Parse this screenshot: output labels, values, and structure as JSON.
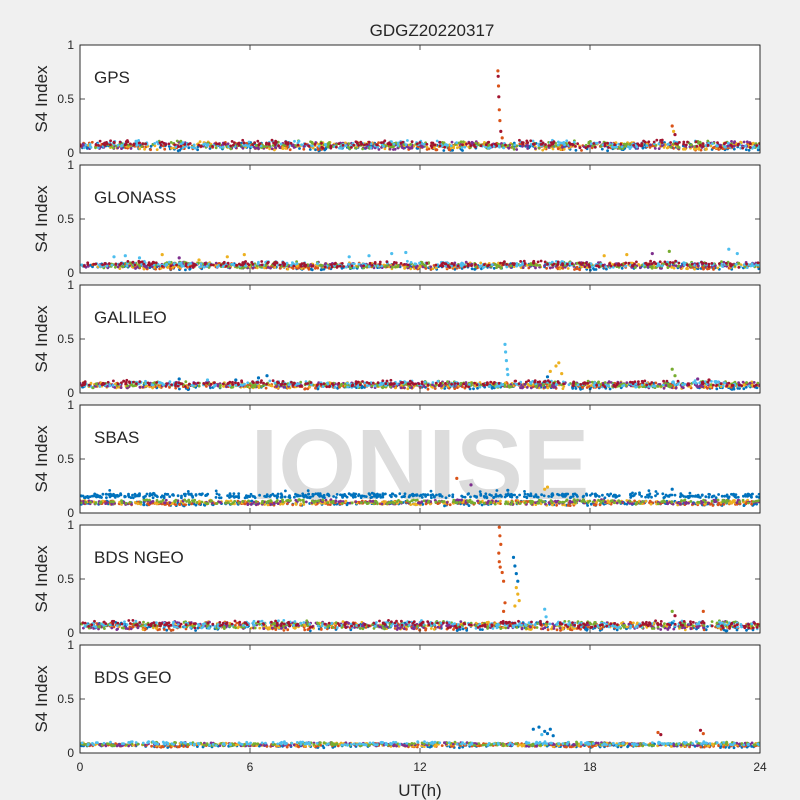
{
  "chart_data": {
    "type": "scatter",
    "title": "GDGZ20220317",
    "xlabel": "UT(h)",
    "ylabel": "S4 Index",
    "xlim": [
      0,
      24
    ],
    "ylim": [
      0,
      1
    ],
    "xticks": [
      "0",
      "6",
      "12",
      "18",
      "24"
    ],
    "yticks": [
      "0",
      "0.5",
      "1"
    ],
    "watermark": "IONISE",
    "grid": false,
    "palette": [
      "#0072BD",
      "#D95319",
      "#EDB120",
      "#7E2F8E",
      "#77AC30",
      "#4DBEEE",
      "#A2142F"
    ],
    "panels": [
      {
        "name": "GPS",
        "baseline": 0.07,
        "spread": 0.025,
        "segments": [
          [
            0,
            24
          ],
          [
            0,
            24
          ],
          [
            0,
            24
          ],
          [
            0,
            24
          ],
          [
            0,
            24
          ],
          [
            0,
            24
          ],
          [
            0,
            24
          ]
        ],
        "points": [
          {
            "x": 14.75,
            "y": 0.76,
            "c": 1
          },
          {
            "x": 14.76,
            "y": 0.71,
            "c": 6
          },
          {
            "x": 14.77,
            "y": 0.62,
            "c": 1
          },
          {
            "x": 14.78,
            "y": 0.52,
            "c": 6
          },
          {
            "x": 14.8,
            "y": 0.4,
            "c": 1
          },
          {
            "x": 14.82,
            "y": 0.3,
            "c": 1
          },
          {
            "x": 14.85,
            "y": 0.2,
            "c": 6
          },
          {
            "x": 14.9,
            "y": 0.14,
            "c": 1
          },
          {
            "x": 20.9,
            "y": 0.25,
            "c": 1
          },
          {
            "x": 20.95,
            "y": 0.2,
            "c": 2
          },
          {
            "x": 21.0,
            "y": 0.17,
            "c": 6
          }
        ]
      },
      {
        "name": "GLONASS",
        "baseline": 0.07,
        "spread": 0.02,
        "segments": [
          [
            0,
            24
          ],
          [
            0,
            24
          ],
          [
            0,
            24
          ],
          [
            0,
            24
          ],
          [
            0,
            24
          ],
          [
            0,
            24
          ],
          [
            0,
            24
          ]
        ],
        "points": [
          {
            "x": 1.2,
            "y": 0.15,
            "c": 5
          },
          {
            "x": 1.6,
            "y": 0.16,
            "c": 5
          },
          {
            "x": 2.1,
            "y": 0.14,
            "c": 5
          },
          {
            "x": 2.9,
            "y": 0.17,
            "c": 2
          },
          {
            "x": 3.5,
            "y": 0.14,
            "c": 3
          },
          {
            "x": 4.2,
            "y": 0.12,
            "c": 2
          },
          {
            "x": 5.2,
            "y": 0.15,
            "c": 2
          },
          {
            "x": 5.8,
            "y": 0.17,
            "c": 2
          },
          {
            "x": 9.5,
            "y": 0.15,
            "c": 5
          },
          {
            "x": 10.2,
            "y": 0.16,
            "c": 5
          },
          {
            "x": 11.0,
            "y": 0.18,
            "c": 5
          },
          {
            "x": 11.5,
            "y": 0.19,
            "c": 5
          },
          {
            "x": 18.5,
            "y": 0.16,
            "c": 2
          },
          {
            "x": 19.3,
            "y": 0.17,
            "c": 2
          },
          {
            "x": 20.2,
            "y": 0.18,
            "c": 3
          },
          {
            "x": 20.8,
            "y": 0.2,
            "c": 4
          },
          {
            "x": 22.9,
            "y": 0.22,
            "c": 5
          },
          {
            "x": 23.2,
            "y": 0.18,
            "c": 5
          }
        ]
      },
      {
        "name": "GALILEO",
        "baseline": 0.075,
        "spread": 0.02,
        "segments": [
          [
            0,
            24
          ],
          [
            0,
            24
          ],
          [
            0,
            24
          ],
          [
            0,
            24
          ],
          [
            0,
            24
          ],
          [
            0,
            24
          ],
          [
            0,
            24
          ]
        ],
        "points": [
          {
            "x": 3.5,
            "y": 0.13,
            "c": 0
          },
          {
            "x": 4.5,
            "y": 0.12,
            "c": 5
          },
          {
            "x": 5.5,
            "y": 0.12,
            "c": 0
          },
          {
            "x": 6.3,
            "y": 0.14,
            "c": 0
          },
          {
            "x": 6.6,
            "y": 0.16,
            "c": 0
          },
          {
            "x": 15.0,
            "y": 0.45,
            "c": 5
          },
          {
            "x": 15.02,
            "y": 0.38,
            "c": 5
          },
          {
            "x": 15.05,
            "y": 0.3,
            "c": 5
          },
          {
            "x": 15.08,
            "y": 0.22,
            "c": 5
          },
          {
            "x": 15.1,
            "y": 0.17,
            "c": 5
          },
          {
            "x": 16.6,
            "y": 0.2,
            "c": 2
          },
          {
            "x": 16.8,
            "y": 0.25,
            "c": 2
          },
          {
            "x": 16.9,
            "y": 0.28,
            "c": 2
          },
          {
            "x": 17.0,
            "y": 0.18,
            "c": 2
          },
          {
            "x": 16.5,
            "y": 0.15,
            "c": 0
          },
          {
            "x": 20.9,
            "y": 0.22,
            "c": 4
          },
          {
            "x": 21.0,
            "y": 0.16,
            "c": 4
          },
          {
            "x": 21.8,
            "y": 0.13,
            "c": 3
          },
          {
            "x": 22.2,
            "y": 0.12,
            "c": 6
          }
        ]
      },
      {
        "name": "SBAS",
        "baseline": 0.1,
        "spread": 0.015,
        "segments": [
          [
            0,
            24
          ],
          [
            0,
            24
          ],
          [
            0,
            24
          ],
          [
            0,
            24
          ],
          [
            0,
            24
          ]
        ],
        "band": {
          "c": 0,
          "y": 0.16,
          "spread": 0.02
        },
        "points": [
          {
            "x": 13.3,
            "y": 0.32,
            "c": 1
          },
          {
            "x": 13.8,
            "y": 0.26,
            "c": 3
          },
          {
            "x": 16.4,
            "y": 0.22,
            "c": 2
          },
          {
            "x": 16.5,
            "y": 0.24,
            "c": 2
          },
          {
            "x": 15.1,
            "y": 0.21,
            "c": 0
          },
          {
            "x": 20.9,
            "y": 0.22,
            "c": 0
          }
        ]
      },
      {
        "name": "BDS NGEO",
        "baseline": 0.07,
        "spread": 0.025,
        "segments": [
          [
            0,
            24
          ],
          [
            0,
            24
          ],
          [
            0,
            24
          ],
          [
            0,
            24
          ],
          [
            0,
            24
          ],
          [
            0,
            24
          ],
          [
            0,
            24
          ]
        ],
        "points": [
          {
            "x": 14.8,
            "y": 0.98,
            "c": 1
          },
          {
            "x": 14.82,
            "y": 0.9,
            "c": 1
          },
          {
            "x": 14.85,
            "y": 0.82,
            "c": 1
          },
          {
            "x": 14.78,
            "y": 0.74,
            "c": 1
          },
          {
            "x": 14.8,
            "y": 0.66,
            "c": 1
          },
          {
            "x": 14.83,
            "y": 0.61,
            "c": 1
          },
          {
            "x": 14.9,
            "y": 0.56,
            "c": 1
          },
          {
            "x": 14.95,
            "y": 0.48,
            "c": 1
          },
          {
            "x": 15.0,
            "y": 0.28,
            "c": 1
          },
          {
            "x": 14.95,
            "y": 0.2,
            "c": 1
          },
          {
            "x": 15.3,
            "y": 0.7,
            "c": 0
          },
          {
            "x": 15.35,
            "y": 0.62,
            "c": 0
          },
          {
            "x": 15.4,
            "y": 0.55,
            "c": 0
          },
          {
            "x": 15.45,
            "y": 0.48,
            "c": 0
          },
          {
            "x": 15.4,
            "y": 0.42,
            "c": 2
          },
          {
            "x": 15.45,
            "y": 0.36,
            "c": 2
          },
          {
            "x": 15.5,
            "y": 0.3,
            "c": 2
          },
          {
            "x": 15.35,
            "y": 0.25,
            "c": 2
          },
          {
            "x": 16.4,
            "y": 0.22,
            "c": 5
          },
          {
            "x": 16.45,
            "y": 0.15,
            "c": 5
          },
          {
            "x": 20.9,
            "y": 0.2,
            "c": 4
          },
          {
            "x": 22.0,
            "y": 0.2,
            "c": 1
          },
          {
            "x": 21.0,
            "y": 0.16,
            "c": 6
          }
        ]
      },
      {
        "name": "BDS GEO",
        "baseline": 0.08,
        "spread": 0.012,
        "segments": [
          [
            0,
            24
          ],
          [
            0,
            24
          ],
          [
            0,
            24
          ],
          [
            0,
            24
          ],
          [
            0,
            24
          ],
          [
            0,
            24
          ]
        ],
        "points": [
          {
            "x": 16.0,
            "y": 0.22,
            "c": 0
          },
          {
            "x": 16.2,
            "y": 0.24,
            "c": 0
          },
          {
            "x": 16.4,
            "y": 0.2,
            "c": 0
          },
          {
            "x": 16.6,
            "y": 0.22,
            "c": 0
          },
          {
            "x": 16.3,
            "y": 0.17,
            "c": 5
          },
          {
            "x": 16.5,
            "y": 0.18,
            "c": 0
          },
          {
            "x": 16.7,
            "y": 0.16,
            "c": 0
          },
          {
            "x": 20.4,
            "y": 0.19,
            "c": 1
          },
          {
            "x": 20.5,
            "y": 0.17,
            "c": 6
          },
          {
            "x": 21.9,
            "y": 0.21,
            "c": 6
          },
          {
            "x": 22.0,
            "y": 0.18,
            "c": 1
          }
        ]
      }
    ]
  }
}
